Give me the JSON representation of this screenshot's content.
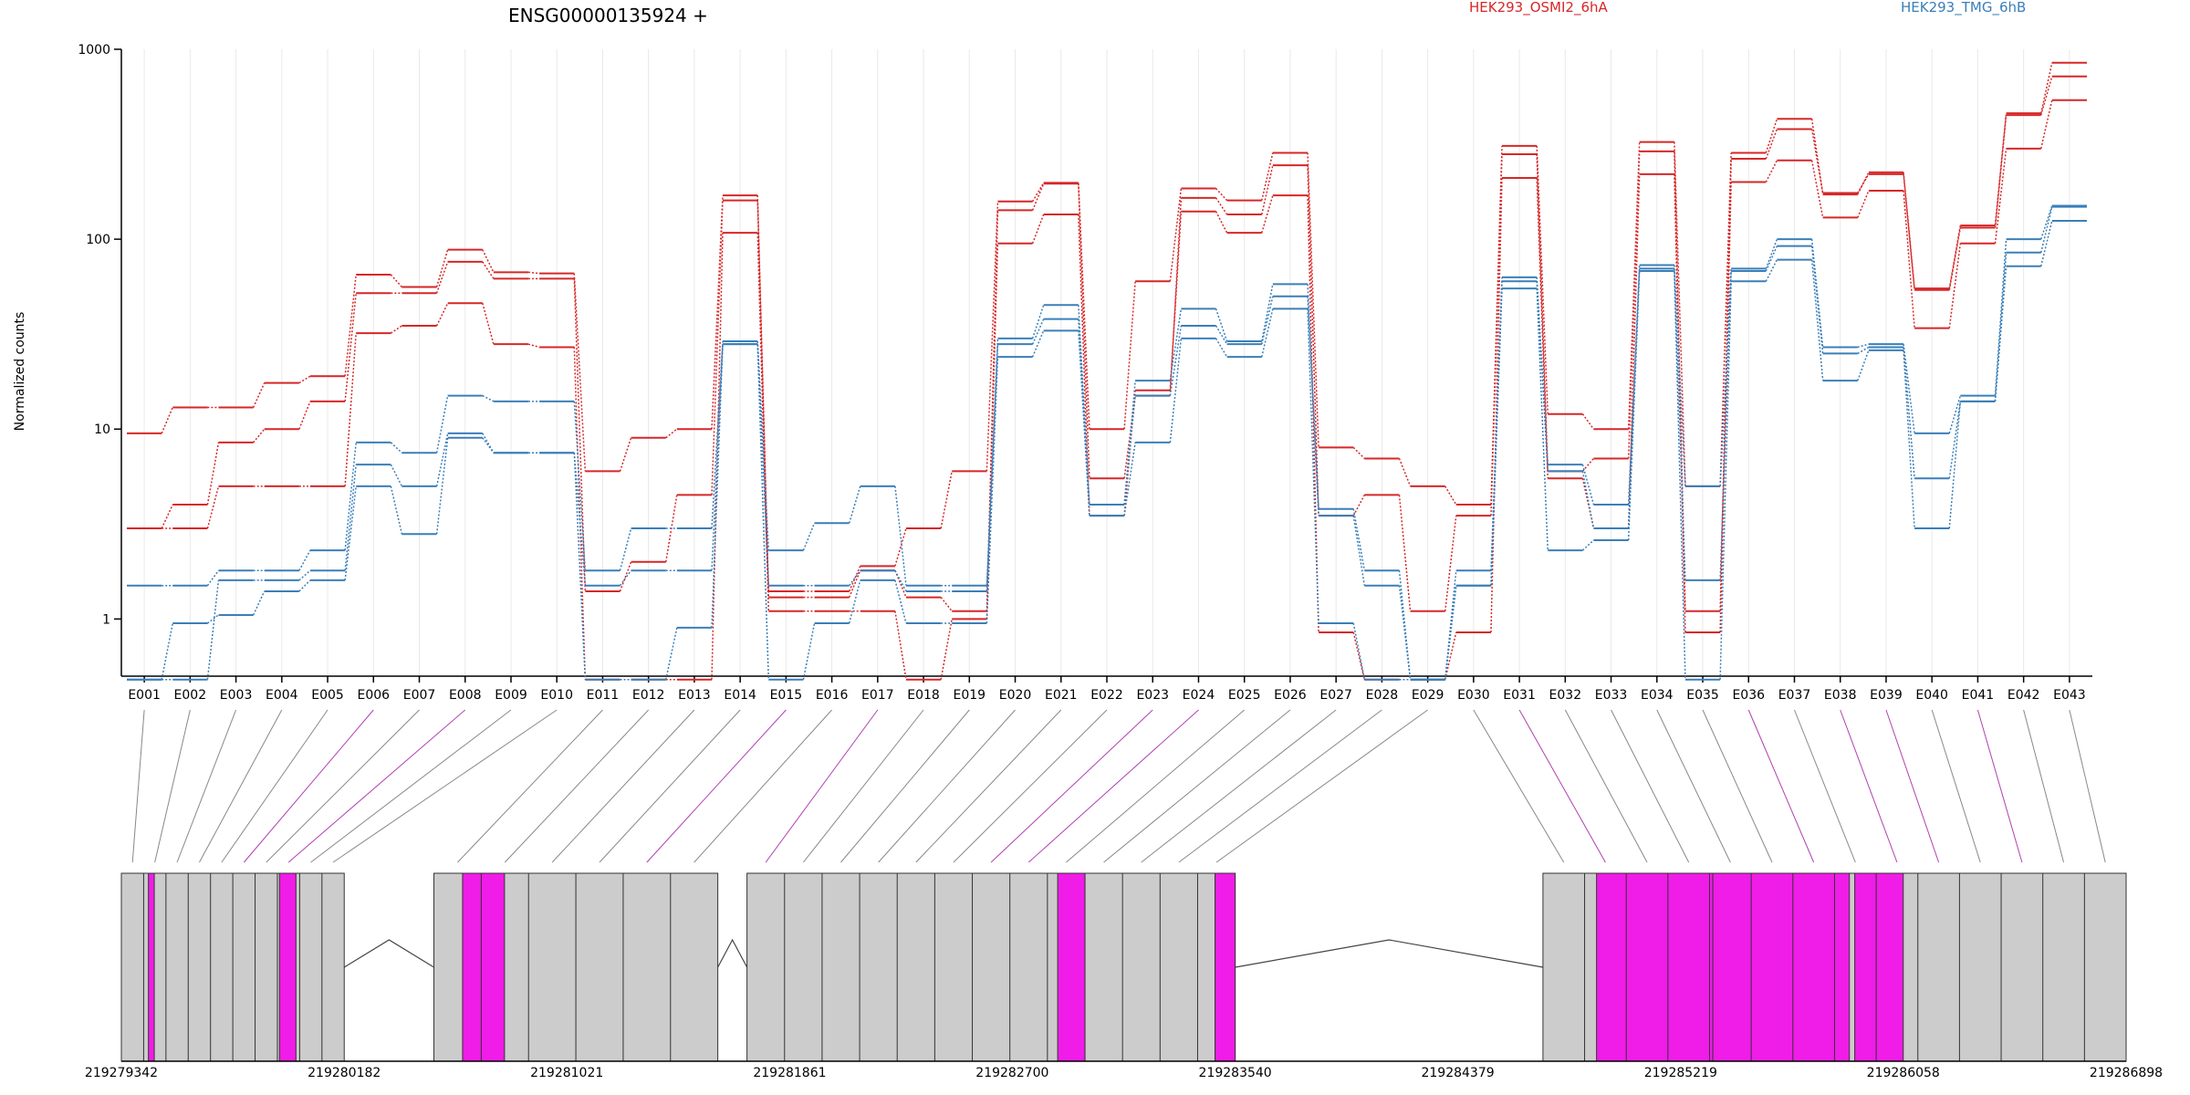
{
  "chart_data": {
    "type": "line",
    "title": "ENSG00000135924 +",
    "ylabel": "Normalized counts",
    "yscale": "log",
    "ylim": [
      0.5,
      1000
    ],
    "ytick_values": [
      1,
      10,
      100,
      1000
    ],
    "ytick_labels": [
      "1",
      "10",
      "100",
      "1000"
    ],
    "categories": [
      "E001",
      "E002",
      "E003",
      "E004",
      "E005",
      "E006",
      "E007",
      "E008",
      "E009",
      "E010",
      "E011",
      "E012",
      "E013",
      "E014",
      "E015",
      "E016",
      "E017",
      "E018",
      "E019",
      "E020",
      "E021",
      "E022",
      "E023",
      "E024",
      "E025",
      "E026",
      "E027",
      "E028",
      "E029",
      "E030",
      "E031",
      "E032",
      "E033",
      "E034",
      "E035",
      "E036",
      "E037",
      "E038",
      "E039",
      "E040",
      "E041",
      "E042",
      "E043"
    ],
    "legend": [
      {
        "label": "HEK293_OSMI2_6hA",
        "color": "#d62728"
      },
      {
        "label": "HEK293_TMG_6hB",
        "color": "#3a7fb8"
      }
    ],
    "series": [
      {
        "group": 0,
        "values": [
          9.5,
          13,
          13,
          17.5,
          19,
          65,
          56,
          88,
          67,
          66,
          6,
          9,
          10,
          170,
          1.4,
          1.4,
          1.9,
          3,
          6,
          158,
          198,
          10,
          60,
          185,
          160,
          285,
          8,
          7,
          5,
          4,
          310,
          12,
          10,
          325,
          5,
          285,
          430,
          172,
          225,
          55,
          118,
          460,
          850
        ]
      },
      {
        "group": 0,
        "values": [
          3,
          4,
          8.5,
          10,
          14,
          52,
          52,
          76,
          62,
          62,
          1.4,
          2,
          4.5,
          160,
          1.3,
          1.3,
          1.8,
          1.3,
          1.1,
          142,
          196,
          5.5,
          15,
          165,
          135,
          245,
          3.5,
          4.5,
          1.1,
          3.5,
          280,
          6,
          7,
          290,
          1.1,
          265,
          380,
          175,
          220,
          54,
          115,
          450,
          720
        ]
      },
      {
        "group": 0,
        "values": [
          3,
          3,
          5,
          5,
          5,
          32,
          35,
          46,
          28,
          27,
          0.48,
          0.48,
          0.48,
          108,
          1.1,
          1.1,
          1.1,
          0.48,
          1,
          95,
          135,
          3.5,
          16,
          140,
          108,
          170,
          0.85,
          0.48,
          0.48,
          0.85,
          210,
          5.5,
          3,
          220,
          0.85,
          200,
          260,
          130,
          180,
          34,
          95,
          300,
          540
        ]
      },
      {
        "group": 1,
        "values": [
          1.5,
          1.5,
          1.8,
          1.8,
          2.3,
          8.5,
          7.5,
          15,
          14,
          14,
          1.8,
          3,
          3,
          29,
          2.3,
          3.2,
          5,
          1.5,
          1.5,
          30,
          45,
          4,
          18,
          43,
          29,
          58,
          3.8,
          1.8,
          0.48,
          1.8,
          63,
          6.5,
          4,
          73,
          5,
          70,
          100,
          27,
          28,
          9.5,
          15,
          100,
          150
        ]
      },
      {
        "group": 1,
        "values": [
          0.48,
          0.48,
          1.6,
          1.6,
          1.8,
          6.5,
          5,
          9.5,
          7.5,
          7.5,
          1.5,
          1.8,
          1.8,
          28,
          1.5,
          1.5,
          1.8,
          1.4,
          1.4,
          28,
          38,
          4,
          15,
          35,
          28,
          50,
          3.5,
          1.5,
          0.48,
          1.5,
          60,
          6,
          3,
          70,
          1.6,
          68,
          92,
          25,
          27,
          5.5,
          14,
          85,
          148
        ]
      },
      {
        "group": 1,
        "values": [
          0.48,
          0.95,
          1.05,
          1.4,
          1.6,
          5,
          2.8,
          9,
          7.5,
          7.5,
          0.48,
          0.48,
          0.9,
          28,
          0.48,
          0.95,
          1.6,
          0.95,
          0.95,
          24,
          33,
          3.5,
          8.5,
          30,
          24,
          43,
          0.95,
          0.48,
          0.48,
          1.5,
          55,
          2.3,
          2.6,
          68,
          0.48,
          60,
          78,
          18,
          26,
          3,
          14,
          72,
          125
        ]
      }
    ],
    "exon_ticks": [
      219279342,
      219280182,
      219281021,
      219281861,
      219282700,
      219283540,
      219284379,
      219285219,
      219286058,
      219286898
    ],
    "exon_tick_labels": [
      "219279342",
      "219280182",
      "219281021",
      "219281861",
      "219282700",
      "219283540",
      "219284379",
      "219285219",
      "219286058",
      "219286898"
    ],
    "exon_blocks": [
      {
        "start": 219279342,
        "end": 219280182,
        "highlight": false
      },
      {
        "start": 219280520,
        "end": 219281590,
        "highlight": false
      },
      {
        "start": 219281700,
        "end": 219283540,
        "highlight": false
      },
      {
        "start": 219284700,
        "end": 219286898,
        "highlight": false
      }
    ],
    "highlighted_regions": [
      {
        "start": 219279444,
        "end": 219279466
      },
      {
        "start": 219279938,
        "end": 219280000
      },
      {
        "start": 219280628,
        "end": 219280786
      },
      {
        "start": 219282871,
        "end": 219282974
      },
      {
        "start": 219283464,
        "end": 219283540
      },
      {
        "start": 219284902,
        "end": 219285340
      },
      {
        "start": 219285340,
        "end": 219285855
      },
      {
        "start": 219285875,
        "end": 219286058
      }
    ],
    "colors": {
      "exon_fill": "#cccccc",
      "highlight_fill": "#f01ce8",
      "grid": "#e9e9e9",
      "connector": "#888888",
      "connector_highlight": "#b040b0"
    }
  }
}
